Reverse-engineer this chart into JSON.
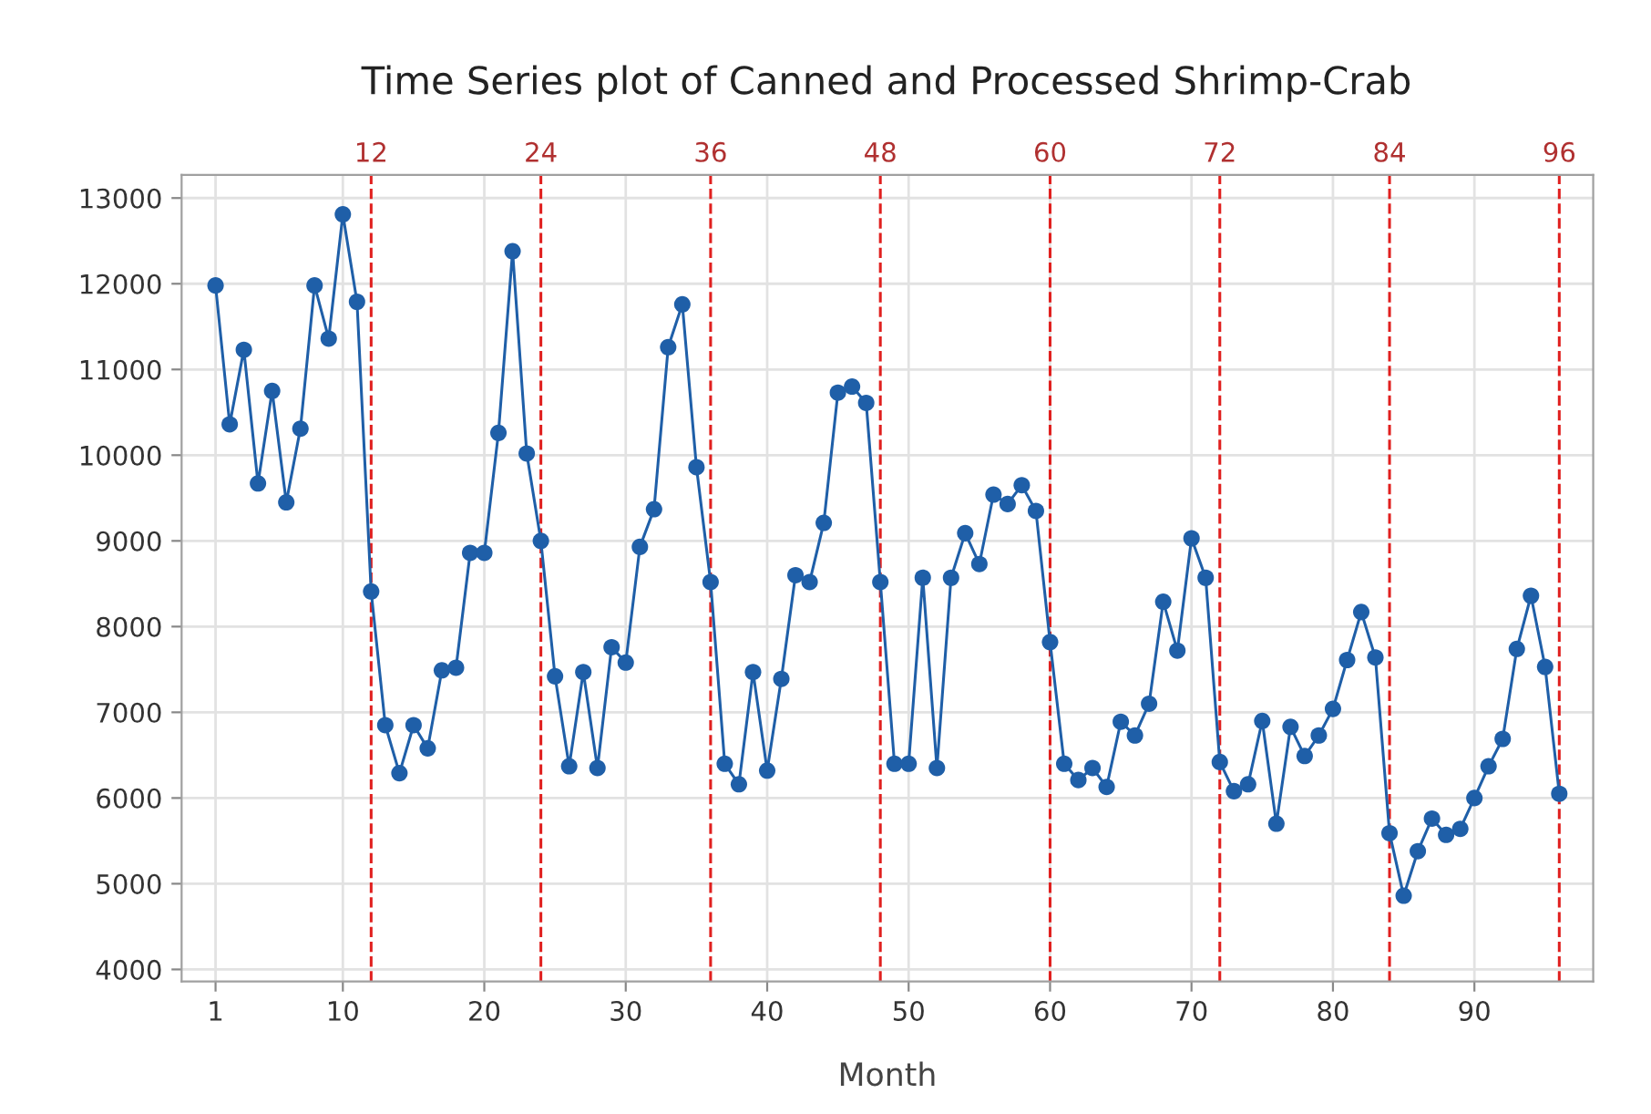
{
  "chart_data": {
    "type": "line",
    "title": "Time Series plot of Canned and Processed Shrimp-Crab",
    "xlabel": "Month",
    "x": [
      1,
      2,
      3,
      4,
      5,
      6,
      7,
      8,
      9,
      10,
      11,
      12,
      13,
      14,
      15,
      16,
      17,
      18,
      19,
      20,
      21,
      22,
      23,
      24,
      25,
      26,
      27,
      28,
      29,
      30,
      31,
      32,
      33,
      34,
      35,
      36,
      37,
      38,
      39,
      40,
      41,
      42,
      43,
      44,
      45,
      46,
      47,
      48,
      49,
      50,
      51,
      52,
      53,
      54,
      55,
      56,
      57,
      58,
      59,
      60,
      61,
      62,
      63,
      64,
      65,
      66,
      67,
      68,
      69,
      70,
      71,
      72,
      73,
      74,
      75,
      76,
      77,
      78,
      79,
      80,
      81,
      82,
      83,
      84,
      85,
      86,
      87,
      88,
      89,
      90,
      91,
      92,
      93,
      94,
      95,
      96
    ],
    "series": [
      {
        "color": "#1f5fa8",
        "values": [
          11980,
          10360,
          11230,
          9670,
          10750,
          9450,
          10310,
          11980,
          11360,
          12810,
          11790,
          8410,
          6850,
          6290,
          6850,
          6580,
          7490,
          7520,
          8860,
          8860,
          10260,
          12380,
          10020,
          9000,
          7420,
          6370,
          7470,
          6350,
          7760,
          7580,
          8930,
          9370,
          11260,
          11760,
          9860,
          8520,
          6400,
          6160,
          7470,
          6320,
          7390,
          8600,
          8520,
          9210,
          10730,
          10800,
          10610,
          8520,
          6400,
          6400,
          8570,
          6350,
          8570,
          9090,
          8730,
          9540,
          9430,
          9650,
          9350,
          7820,
          6400,
          6210,
          6350,
          6130,
          6890,
          6730,
          7100,
          8290,
          7720,
          9030,
          8570,
          6420,
          6080,
          6160,
          6900,
          5700,
          6830,
          6490,
          6730,
          7040,
          7610,
          8170,
          7640,
          5590,
          4860,
          5380,
          5760,
          5570,
          5640,
          6000,
          6370,
          6690,
          7740,
          8360,
          7530,
          6050
        ]
      }
    ],
    "xlim": [
      -1.4,
      98.4
    ],
    "ylim": [
      3860,
      13270
    ],
    "xticks": [
      1,
      10,
      20,
      30,
      40,
      50,
      60,
      70,
      80,
      90
    ],
    "yticks": [
      4000,
      5000,
      6000,
      7000,
      8000,
      9000,
      10000,
      11000,
      12000,
      13000
    ],
    "grid": true,
    "marker": "circle",
    "line_style": "solid",
    "ref_lines": [
      {
        "axis": "x",
        "value": 12,
        "label": "12",
        "color": "#e0201f",
        "line_style": "dashed"
      },
      {
        "axis": "x",
        "value": 24,
        "label": "24",
        "color": "#e0201f",
        "line_style": "dashed"
      },
      {
        "axis": "x",
        "value": 36,
        "label": "36",
        "color": "#e0201f",
        "line_style": "dashed"
      },
      {
        "axis": "x",
        "value": 48,
        "label": "48",
        "color": "#e0201f",
        "line_style": "dashed"
      },
      {
        "axis": "x",
        "value": 60,
        "label": "60",
        "color": "#e0201f",
        "line_style": "dashed"
      },
      {
        "axis": "x",
        "value": 72,
        "label": "72",
        "color": "#e0201f",
        "line_style": "dashed"
      },
      {
        "axis": "x",
        "value": 84,
        "label": "84",
        "color": "#e0201f",
        "line_style": "dashed"
      },
      {
        "axis": "x",
        "value": 96,
        "label": "96",
        "color": "#e0201f",
        "line_style": "dashed"
      }
    ]
  }
}
